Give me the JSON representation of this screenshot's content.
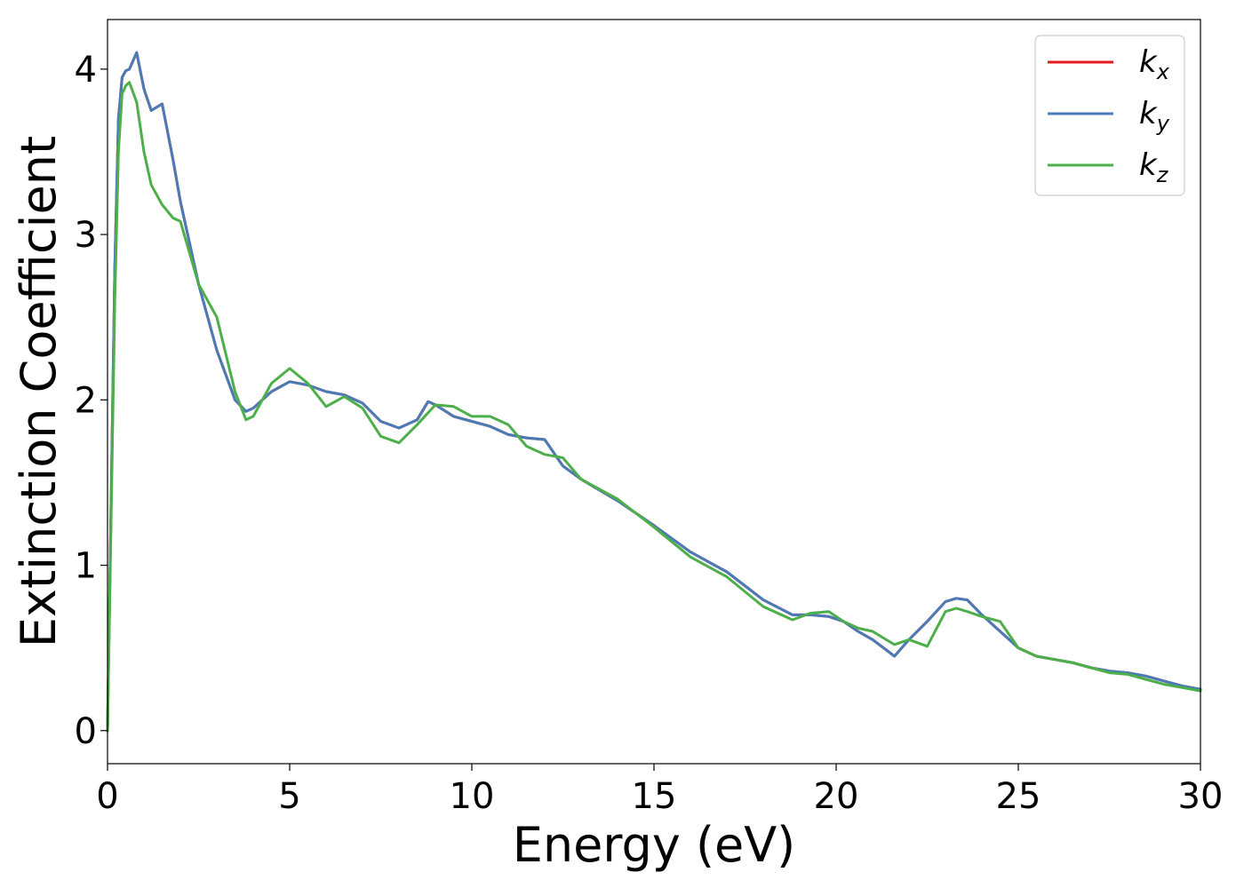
{
  "chart_data": {
    "type": "line",
    "title": "",
    "xlabel": "Energy (eV)",
    "ylabel": "Extinction Coefficient",
    "xlim": [
      0,
      30
    ],
    "ylim": [
      -0.2,
      4.3
    ],
    "xticks": [
      0,
      5,
      10,
      15,
      20,
      25,
      30
    ],
    "yticks": [
      0,
      1,
      2,
      3,
      4
    ],
    "grid": false,
    "legend_position": "top-right",
    "series": [
      {
        "name": "k_x",
        "legend_base": "k",
        "legend_sub": "x",
        "color": "#e41a1c",
        "x": [
          0,
          0.1,
          0.2,
          0.3,
          0.4,
          0.5,
          0.6,
          0.8,
          1.0,
          1.2,
          1.5,
          1.8,
          2.0,
          2.5,
          3.0,
          3.5,
          3.8,
          4.0,
          4.5,
          5.0,
          5.5,
          6.0,
          6.5,
          7.0,
          7.5,
          8.0,
          8.5,
          8.8,
          9.0,
          9.5,
          10.0,
          10.5,
          11.0,
          11.5,
          12.0,
          12.5,
          13.0,
          14.0,
          15.0,
          16.0,
          17.0,
          18.0,
          18.8,
          19.3,
          19.8,
          20.2,
          20.6,
          21.0,
          21.3,
          21.6,
          22.0,
          22.5,
          23.0,
          23.3,
          23.6,
          24.0,
          24.5,
          25.0,
          25.5,
          26.0,
          26.5,
          27.0,
          27.5,
          28.0,
          28.5,
          29.0,
          29.5,
          30.0
        ],
        "y": [
          0.0,
          1.4,
          2.8,
          3.7,
          3.95,
          3.99,
          4.0,
          4.1,
          3.88,
          3.75,
          3.79,
          3.45,
          3.2,
          2.7,
          2.3,
          2.0,
          1.93,
          1.95,
          2.05,
          2.11,
          2.09,
          2.05,
          2.03,
          1.98,
          1.87,
          1.83,
          1.88,
          1.99,
          1.97,
          1.9,
          1.87,
          1.84,
          1.79,
          1.77,
          1.76,
          1.6,
          1.52,
          1.39,
          1.24,
          1.08,
          0.96,
          0.79,
          0.7,
          0.7,
          0.69,
          0.66,
          0.6,
          0.55,
          0.5,
          0.45,
          0.55,
          0.66,
          0.78,
          0.8,
          0.79,
          0.7,
          0.6,
          0.5,
          0.45,
          0.43,
          0.41,
          0.38,
          0.36,
          0.35,
          0.33,
          0.3,
          0.27,
          0.25
        ]
      },
      {
        "name": "k_y",
        "legend_base": "k",
        "legend_sub": "y",
        "color": "#4a7bb7",
        "x": [
          0,
          0.1,
          0.2,
          0.3,
          0.4,
          0.5,
          0.6,
          0.8,
          1.0,
          1.2,
          1.5,
          1.8,
          2.0,
          2.5,
          3.0,
          3.5,
          3.8,
          4.0,
          4.5,
          5.0,
          5.5,
          6.0,
          6.5,
          7.0,
          7.5,
          8.0,
          8.5,
          8.8,
          9.0,
          9.5,
          10.0,
          10.5,
          11.0,
          11.5,
          12.0,
          12.5,
          13.0,
          14.0,
          15.0,
          16.0,
          17.0,
          18.0,
          18.8,
          19.3,
          19.8,
          20.2,
          20.6,
          21.0,
          21.3,
          21.6,
          22.0,
          22.5,
          23.0,
          23.3,
          23.6,
          24.0,
          24.5,
          25.0,
          25.5,
          26.0,
          26.5,
          27.0,
          27.5,
          28.0,
          28.5,
          29.0,
          29.5,
          30.0
        ],
        "y": [
          0.0,
          1.4,
          2.8,
          3.7,
          3.95,
          3.99,
          4.0,
          4.1,
          3.88,
          3.75,
          3.79,
          3.45,
          3.2,
          2.7,
          2.3,
          2.0,
          1.93,
          1.95,
          2.05,
          2.11,
          2.09,
          2.05,
          2.03,
          1.98,
          1.87,
          1.83,
          1.88,
          1.99,
          1.97,
          1.9,
          1.87,
          1.84,
          1.79,
          1.77,
          1.76,
          1.6,
          1.52,
          1.39,
          1.24,
          1.08,
          0.96,
          0.79,
          0.7,
          0.7,
          0.69,
          0.66,
          0.6,
          0.55,
          0.5,
          0.45,
          0.55,
          0.66,
          0.78,
          0.8,
          0.79,
          0.7,
          0.6,
          0.5,
          0.45,
          0.43,
          0.41,
          0.38,
          0.36,
          0.35,
          0.33,
          0.3,
          0.27,
          0.25
        ]
      },
      {
        "name": "k_z",
        "legend_base": "k",
        "legend_sub": "z",
        "color": "#4daf4a",
        "x": [
          0,
          0.1,
          0.2,
          0.3,
          0.4,
          0.5,
          0.6,
          0.8,
          1.0,
          1.2,
          1.5,
          1.8,
          2.0,
          2.5,
          3.0,
          3.5,
          3.8,
          4.0,
          4.5,
          5.0,
          5.5,
          6.0,
          6.5,
          7.0,
          7.5,
          8.0,
          8.5,
          9.0,
          9.5,
          10.0,
          10.5,
          11.0,
          11.5,
          12.0,
          12.5,
          13.0,
          14.0,
          15.0,
          16.0,
          17.0,
          18.0,
          18.8,
          19.3,
          19.8,
          20.2,
          20.6,
          21.0,
          21.3,
          21.6,
          22.0,
          22.5,
          23.0,
          23.3,
          23.6,
          24.0,
          24.5,
          25.0,
          25.5,
          26.0,
          26.5,
          27.0,
          27.5,
          28.0,
          28.5,
          29.0,
          29.5,
          30.0
        ],
        "y": [
          0.0,
          1.3,
          2.6,
          3.5,
          3.85,
          3.9,
          3.92,
          3.8,
          3.5,
          3.3,
          3.18,
          3.1,
          3.08,
          2.7,
          2.5,
          2.05,
          1.88,
          1.9,
          2.1,
          2.19,
          2.1,
          1.96,
          2.02,
          1.95,
          1.78,
          1.74,
          1.85,
          1.97,
          1.96,
          1.9,
          1.9,
          1.85,
          1.72,
          1.67,
          1.65,
          1.52,
          1.4,
          1.23,
          1.05,
          0.93,
          0.75,
          0.67,
          0.71,
          0.72,
          0.66,
          0.62,
          0.6,
          0.56,
          0.52,
          0.55,
          0.51,
          0.72,
          0.74,
          0.72,
          0.69,
          0.66,
          0.5,
          0.45,
          0.43,
          0.41,
          0.38,
          0.35,
          0.34,
          0.31,
          0.28,
          0.26,
          0.24
        ]
      }
    ]
  }
}
